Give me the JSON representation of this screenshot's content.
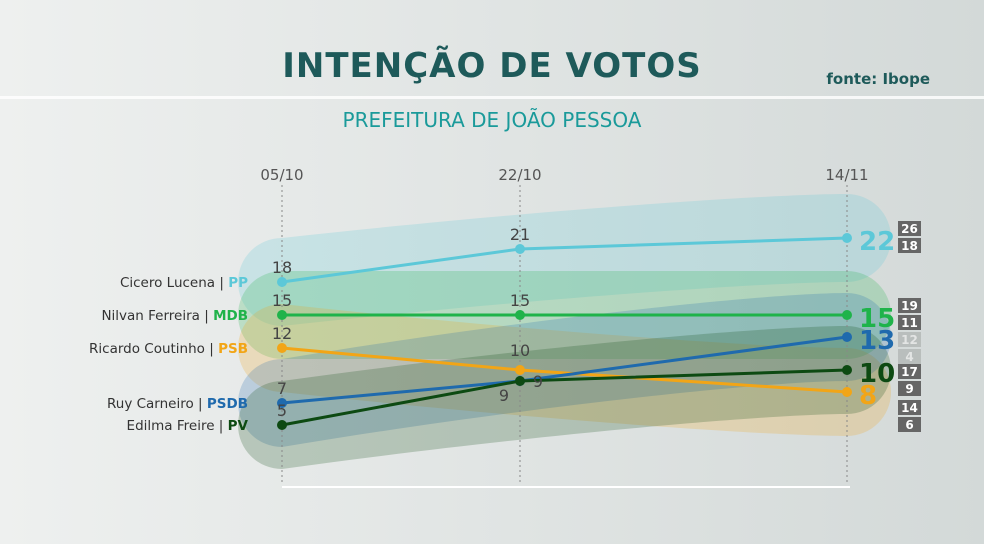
{
  "header": {
    "title": "INTENÇÃO DE VOTOS",
    "source": "fonte: Ibope",
    "subtitle": "PREFEITURA DE JOÃO PESSOA"
  },
  "chart_data": {
    "type": "line",
    "title": "INTENÇÃO DE VOTOS",
    "subtitle": "PREFEITURA DE JOÃO PESSOA",
    "x": [
      "05/10",
      "22/10",
      "14/11"
    ],
    "series": [
      {
        "name": "Cicero Lucena",
        "party": "PP",
        "color": "#5cc8d8",
        "values": [
          18,
          21,
          22
        ],
        "range": [
          26,
          18
        ]
      },
      {
        "name": "Nilvan Ferreira",
        "party": "MDB",
        "color": "#1fb34a",
        "values": [
          15,
          15,
          15
        ],
        "range": [
          19,
          11
        ]
      },
      {
        "name": "Ricardo Coutinho",
        "party": "PSB",
        "color": "#f2a516",
        "values": [
          12,
          10,
          8
        ],
        "range": [
          12,
          4
        ]
      },
      {
        "name": "Ruy Carneiro",
        "party": "PSDB",
        "color": "#1f6aad",
        "values": [
          7,
          9,
          13
        ],
        "range": [
          17,
          9
        ]
      },
      {
        "name": "Edilma Freire",
        "party": "PV",
        "color": "#0d4a12",
        "values": [
          5,
          9,
          10
        ],
        "range": [
          14,
          6
        ]
      }
    ]
  }
}
